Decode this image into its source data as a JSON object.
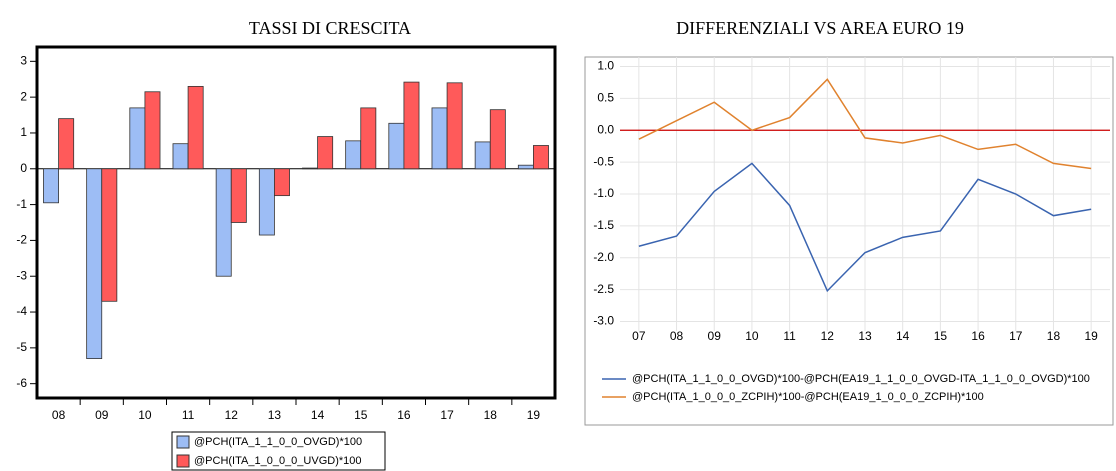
{
  "chart_data": [
    {
      "type": "bar",
      "title": "TASSI DI CRESCITA",
      "categories": [
        "08",
        "09",
        "10",
        "11",
        "12",
        "13",
        "14",
        "15",
        "16",
        "17",
        "18",
        "19"
      ],
      "series": [
        {
          "name": "@PCH(ITA_1_1_0_0_OVGD)*100",
          "color": "#9dbdf5",
          "values": [
            -0.95,
            -5.3,
            1.7,
            0.7,
            -3.0,
            -1.85,
            0.02,
            0.78,
            1.27,
            1.7,
            0.75,
            0.1
          ]
        },
        {
          "name": "@PCH(ITA_1_0_0_0_UVGD)*100",
          "color": "#ff5a5a",
          "values": [
            1.4,
            -3.7,
            2.15,
            2.3,
            -1.5,
            -0.75,
            0.9,
            1.7,
            2.42,
            2.4,
            1.65,
            0.65
          ]
        }
      ],
      "ylim": [
        -6.4,
        3.4
      ],
      "yticks": [
        -6,
        -5,
        -4,
        -3,
        -2,
        -1,
        0,
        1,
        2,
        3
      ],
      "grid": false
    },
    {
      "type": "line",
      "title": "DIFFERENZIALI VS AREA EURO 19",
      "categories": [
        "07",
        "08",
        "09",
        "10",
        "11",
        "12",
        "13",
        "14",
        "15",
        "16",
        "17",
        "18",
        "19"
      ],
      "series": [
        {
          "name": "@PCH(ITA_1_1_0_0_OVGD)*100-@PCH(EA19_1_1_0_0_OVGD-ITA_1_1_0_0_OVGD)*100",
          "color": "#3a64b0",
          "values": [
            -1.82,
            -1.66,
            -0.96,
            -0.52,
            -1.18,
            -2.52,
            -1.92,
            -1.68,
            -1.58,
            -0.77,
            -1.0,
            -1.34,
            -1.24
          ]
        },
        {
          "name": "@PCH(ITA_1_0_0_0_ZCPIH)*100-@PCH(EA19_1_0_0_0_ZCPIH)*100",
          "color": "#e0822e",
          "values": [
            -0.14,
            0.15,
            0.44,
            0.0,
            0.2,
            0.8,
            -0.12,
            -0.2,
            -0.08,
            -0.3,
            -0.22,
            -0.52,
            -0.6
          ]
        }
      ],
      "ylim": [
        -3.15,
        1.15
      ],
      "yticks": [
        {
          "value": 1,
          "label": "1.0"
        },
        0.5,
        {
          "value": 0,
          "label": "0.0"
        },
        -0.5,
        {
          "value": -1,
          "label": "-1.0"
        },
        -1.5,
        {
          "value": -2,
          "label": "-2.0"
        },
        -2.5,
        {
          "value": -3,
          "label": "-3.0"
        }
      ],
      "reference_line": 0,
      "reference_color": "#cc0000",
      "grid": true
    }
  ]
}
